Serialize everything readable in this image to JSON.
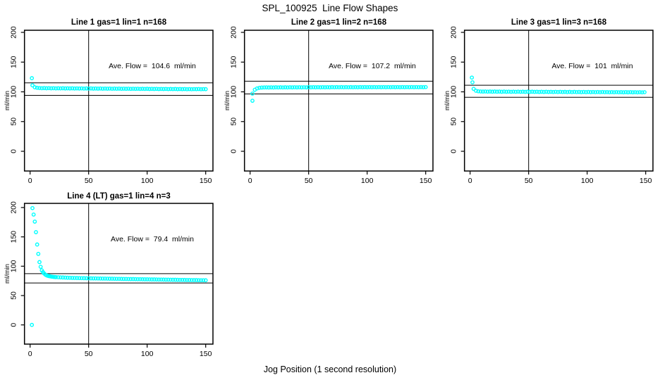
{
  "page": {
    "title": "SPL_100925  Line Flow Shapes",
    "xlabel": "Jog Position (1 second resolution)"
  },
  "style": {
    "point_color": "#00FFFF",
    "axis_color": "#000000",
    "background": "#FFFFFF"
  },
  "chart_data": {
    "type": "scatter",
    "title": "SPL_100925  Line Flow Shapes",
    "xlabel": "Jog Position (1 second resolution)",
    "ylabel": "ml/min",
    "x_ticks": [
      0,
      50,
      100,
      150
    ],
    "y_ticks": [
      0,
      50,
      100,
      150,
      200
    ],
    "xlim": [
      -5,
      156
    ],
    "ylim": [
      -34,
      208
    ],
    "vline_x": 50,
    "grid": false,
    "legend": "none",
    "marker": "open-circle",
    "panels": [
      {
        "title": "Line 1 gas=1 lin=1 n=168",
        "n": 168,
        "ave_flow": 104.6,
        "annotation": "Ave. Flow =  104.6  ml/min",
        "hlines": [
          115.1,
          94.1
        ],
        "x_start": 2,
        "x_step": 2,
        "y": [
          111,
          107.6,
          106.8,
          106.4,
          106.1,
          106.3,
          106.0,
          106.2,
          105.9,
          106.1,
          105.8,
          106.0,
          105.8,
          106.0,
          105.7,
          105.9,
          105.7,
          105.9,
          105.6,
          105.8,
          105.6,
          105.8,
          105.5,
          105.7,
          105.5,
          105.7,
          105.4,
          105.6,
          105.4,
          105.6,
          105.3,
          105.5,
          105.3,
          105.5,
          105.2,
          105.4,
          105.2,
          105.4,
          105.1,
          105.3,
          105.1,
          105.3,
          105.0,
          105.2,
          105.0,
          105.2,
          104.9,
          105.1,
          104.9,
          105.1,
          104.8,
          105.0,
          104.8,
          105.0,
          104.7,
          104.9,
          104.7,
          104.9,
          104.6,
          104.8,
          104.6,
          104.8,
          104.5,
          104.7,
          104.5,
          104.7,
          104.4,
          104.6,
          104.4,
          104.6,
          104.5,
          104.7,
          104.4,
          104.6,
          104.5
        ],
        "extra_points": [
          [
            1.5,
            123
          ]
        ]
      },
      {
        "title": "Line 2 gas=1 lin=2 n=168",
        "n": 168,
        "ave_flow": 107.2,
        "annotation": "Ave. Flow =  107.2  ml/min",
        "hlines": [
          117.9,
          96.5
        ],
        "x_start": 2,
        "x_step": 2,
        "y": [
          97,
          103.5,
          105.8,
          106.8,
          107.2,
          107.4,
          107.5,
          107.3,
          107.5,
          107.3,
          107.6,
          107.4,
          107.6,
          107.4,
          107.6,
          107.4,
          107.7,
          107.5,
          107.7,
          107.5,
          107.7,
          107.5,
          107.7,
          107.5,
          107.8,
          107.6,
          107.8,
          107.6,
          107.8,
          107.6,
          107.8,
          107.6,
          107.8,
          107.6,
          107.9,
          107.7,
          107.9,
          107.7,
          107.9,
          107.7,
          107.9,
          107.7,
          107.9,
          107.7,
          107.9,
          107.7,
          108.0,
          107.8,
          108.0,
          107.8,
          108.0,
          107.8,
          108.0,
          107.8,
          108.0,
          107.8,
          108.0,
          107.8,
          108.0,
          107.8,
          108.0,
          107.8,
          108.0,
          107.8,
          108.0,
          107.8,
          108.0,
          107.8,
          108.0,
          107.8,
          108.0,
          107.8,
          108.0,
          107.8,
          108.0
        ],
        "extra_points": [
          [
            2,
            85
          ]
        ]
      },
      {
        "title": "Line 3 gas=1 lin=3 n=168",
        "n": 168,
        "ave_flow": 101,
        "annotation": "Ave. Flow =  101  ml/min",
        "hlines": [
          111.1,
          90.9
        ],
        "x_start": 3,
        "x_step": 2,
        "y": [
          105,
          101.8,
          100.9,
          100.6,
          100.4,
          100.6,
          100.3,
          100.5,
          100.2,
          100.5,
          100.2,
          100.4,
          100.1,
          100.4,
          100.1,
          100.3,
          100.0,
          100.3,
          100.0,
          100.3,
          100.0,
          100.2,
          99.9,
          100.2,
          99.9,
          100.2,
          99.9,
          100.1,
          99.8,
          100.1,
          99.8,
          100.1,
          99.8,
          100.0,
          99.7,
          100.0,
          99.7,
          100.0,
          99.7,
          99.9,
          99.6,
          99.9,
          99.6,
          99.9,
          99.6,
          99.8,
          99.5,
          99.8,
          99.5,
          99.8,
          99.5,
          99.7,
          99.4,
          99.7,
          99.4,
          99.7,
          99.4,
          99.6,
          99.3,
          99.6,
          99.3,
          99.6,
          99.3,
          99.5,
          99.2,
          99.5,
          99.2,
          99.5,
          99.2,
          99.4,
          99.1,
          99.4,
          99.1,
          99.4
        ],
        "extra_points": [
          [
            1.5,
            124
          ],
          [
            2,
            116
          ]
        ]
      },
      {
        "title": "Line 4 (LT) gas=1 lin=4 n=3",
        "n": 3,
        "ave_flow": 79.4,
        "annotation": "Ave. Flow =  79.4  ml/min",
        "hlines": [
          87.3,
          71.5
        ],
        "x_start": 22,
        "x_step": 2,
        "y": [
          81.4,
          81.2,
          81.0,
          80.8,
          80.6,
          80.4,
          80.3,
          80.1,
          80.0,
          79.9,
          79.8,
          79.7,
          79.6,
          79.5,
          79.4,
          79.3,
          79.2,
          79.2,
          79.1,
          79.0,
          78.9,
          78.9,
          78.8,
          78.7,
          78.7,
          78.6,
          78.5,
          78.5,
          78.4,
          78.3,
          78.3,
          78.2,
          78.1,
          78.1,
          78.0,
          77.9,
          77.9,
          77.8,
          77.7,
          77.7,
          77.6,
          77.5,
          77.5,
          77.4,
          77.3,
          77.3,
          77.2,
          77.1,
          77.1,
          77.0,
          76.9,
          76.9,
          76.8,
          76.7,
          76.7,
          76.6,
          76.5,
          76.5,
          76.4,
          76.3,
          76.3,
          76.2,
          76.1,
          76.1,
          76.0
        ],
        "extra_points": [
          [
            1.5,
            0
          ],
          [
            2,
            199
          ],
          [
            3,
            188
          ],
          [
            4,
            176
          ],
          [
            5,
            158
          ],
          [
            6,
            137
          ],
          [
            7,
            121
          ],
          [
            8,
            107
          ],
          [
            9,
            99
          ],
          [
            10,
            93
          ],
          [
            11,
            90
          ],
          [
            12,
            87.5
          ],
          [
            13,
            85.8
          ],
          [
            14,
            84.5
          ],
          [
            15,
            83.7
          ],
          [
            16,
            83.2
          ],
          [
            17,
            82.8
          ],
          [
            18,
            82.4
          ],
          [
            19,
            82.1
          ],
          [
            20,
            81.8
          ],
          [
            21,
            81.6
          ]
        ]
      }
    ]
  }
}
